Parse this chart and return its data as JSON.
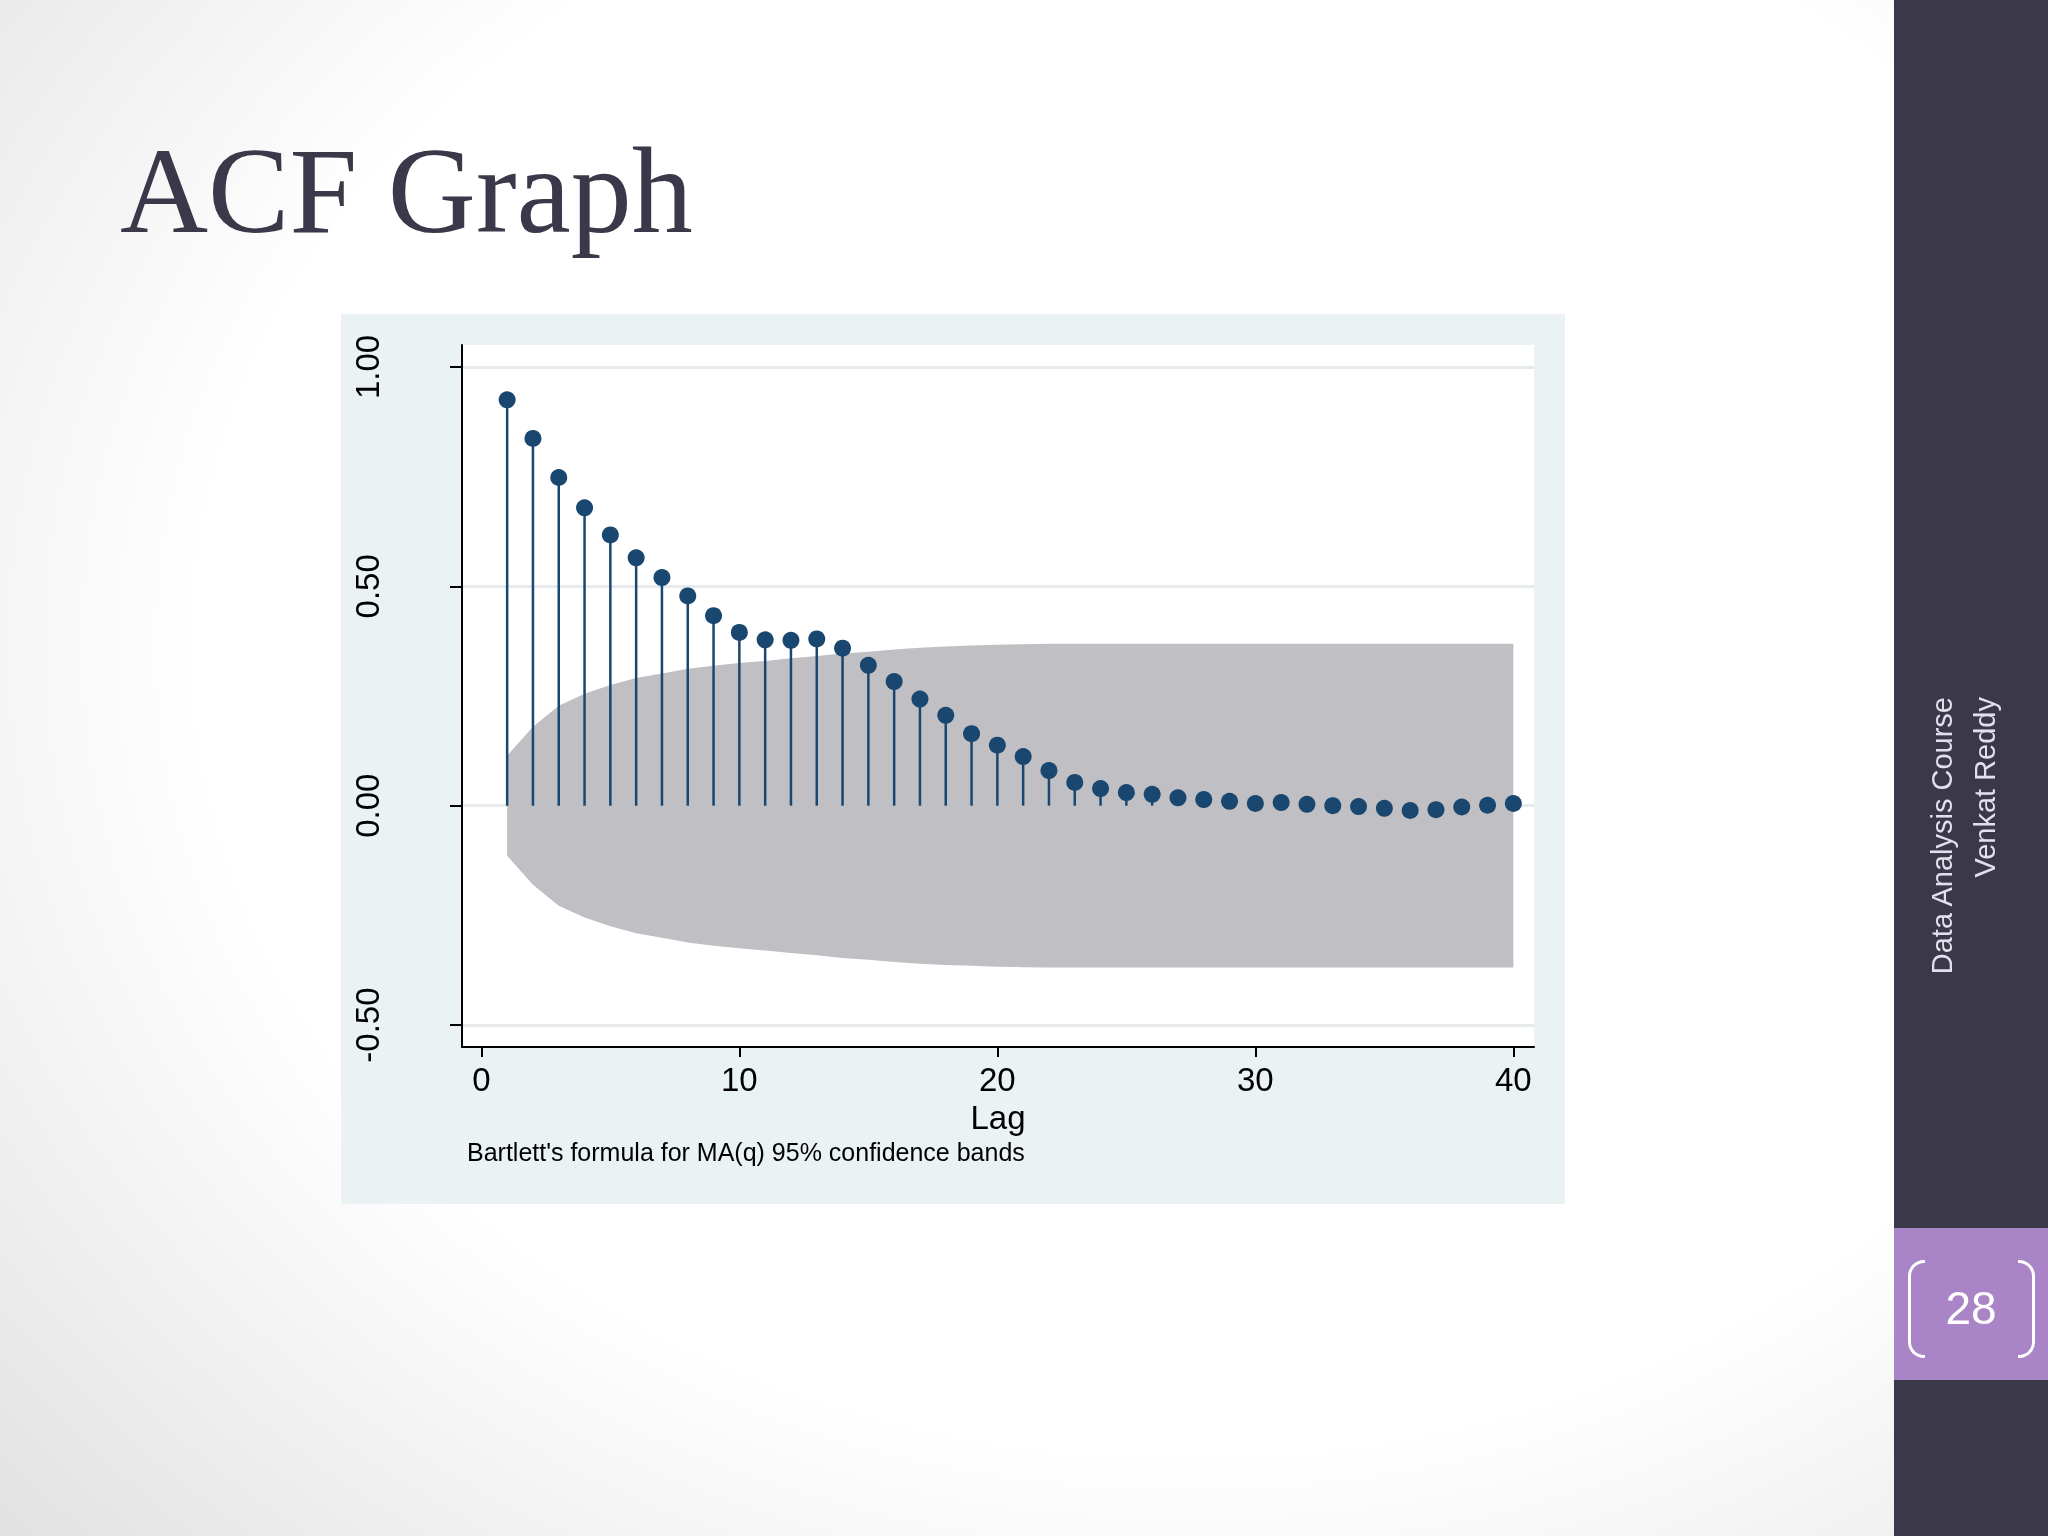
{
  "chart_data": {
    "type": "lollipop",
    "title": "ACF Graph",
    "xlabel": "Lag",
    "annotations": [
      "Bartlett's formula for MA(q) 95% confidence bands",
      "Data Analysis Course",
      "Venkat Reddy",
      "28"
    ],
    "x": [
      1,
      2,
      3,
      4,
      5,
      6,
      7,
      8,
      9,
      10,
      11,
      12,
      13,
      14,
      15,
      16,
      17,
      18,
      19,
      20,
      21,
      22,
      23,
      24,
      25,
      26,
      27,
      28,
      29,
      30,
      31,
      32,
      33,
      34,
      35,
      36,
      37,
      38,
      39,
      40
    ],
    "series": [
      {
        "color": "#1a476f",
        "values": [
          0.925,
          0.837,
          0.748,
          0.679,
          0.617,
          0.565,
          0.52,
          0.478,
          0.433,
          0.395,
          0.378,
          0.377,
          0.38,
          0.359,
          0.32,
          0.283,
          0.243,
          0.206,
          0.164,
          0.138,
          0.112,
          0.08,
          0.053,
          0.039,
          0.03,
          0.026,
          0.018,
          0.014,
          0.01,
          0.005,
          0.007,
          0.003,
          0,
          -0.002,
          -0.006,
          -0.011,
          -0.009,
          -0.003,
          0.001,
          0.005
        ],
        "upper": [
          0.114,
          0.18,
          0.228,
          0.255,
          0.275,
          0.291,
          0.301,
          0.312,
          0.319,
          0.325,
          0.33,
          0.336,
          0.341,
          0.347,
          0.351,
          0.356,
          0.36,
          0.363,
          0.365,
          0.367,
          0.368,
          0.369,
          0.369,
          0.369,
          0.369,
          0.369,
          0.369,
          0.369,
          0.369,
          0.369,
          0.369,
          0.369,
          0.369,
          0.369,
          0.369,
          0.369,
          0.369,
          0.369,
          0.369,
          0.369
        ],
        "lower": [
          -0.114,
          -0.18,
          -0.228,
          -0.255,
          -0.275,
          -0.291,
          -0.301,
          -0.312,
          -0.319,
          -0.325,
          -0.33,
          -0.336,
          -0.341,
          -0.347,
          -0.351,
          -0.356,
          -0.36,
          -0.363,
          -0.365,
          -0.367,
          -0.368,
          -0.369,
          -0.369,
          -0.369,
          -0.369,
          -0.369,
          -0.369,
          -0.369,
          -0.369,
          -0.369,
          -0.369,
          -0.369,
          -0.369,
          -0.369,
          -0.369,
          -0.369,
          -0.369,
          -0.369,
          -0.369,
          -0.369
        ]
      }
    ],
    "xlim": [
      -0.75,
      40.8
    ],
    "xticks": [
      0,
      10,
      20,
      30,
      40
    ],
    "ylim": [
      -0.55,
      1.05
    ],
    "yticks": [
      {
        "value": -0.5,
        "label": "-0.50"
      },
      {
        "value": 0,
        "label": "0.00"
      },
      {
        "value": 0.5,
        "label": "0.50"
      },
      {
        "value": 1,
        "label": "1.00"
      }
    ],
    "grid": "y",
    "marker": "circle"
  }
}
